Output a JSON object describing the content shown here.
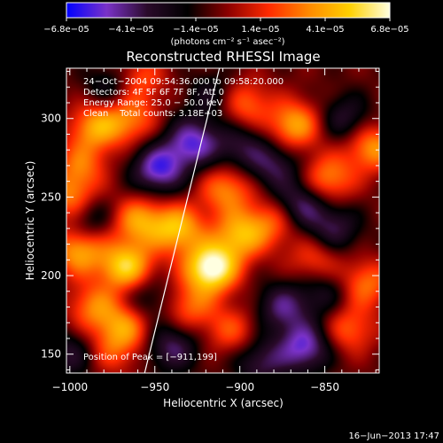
{
  "chart_data": {
    "type": "heatmap",
    "title": "Reconstructed RHESSI Image",
    "xlabel": "Heliocentric X (arcsec)",
    "ylabel": "Heliocentric Y (arcsec)",
    "xlim": [
      -1002,
      -818
    ],
    "ylim": [
      138,
      332
    ],
    "x_ticks": [
      -1000,
      -950,
      -900,
      -850
    ],
    "x_tick_labels": [
      "−1000",
      "−950",
      "−900",
      "−850"
    ],
    "y_ticks": [
      150,
      200,
      250,
      300
    ],
    "y_tick_labels": [
      "150",
      "200",
      "250",
      "300"
    ],
    "colorbar": {
      "ticks": [
        "−6.8e−05",
        "−4.1e−05",
        "−1.4e−05",
        "1.4e−05",
        "4.1e−05",
        "6.8e−05"
      ],
      "range": [
        -6.8e-05,
        6.8e-05
      ],
      "units": "(photons cm⁻² s⁻¹ asec⁻²)",
      "colormap": [
        "#0000ff",
        "#7a32c8",
        "#2a0a2a",
        "#000000",
        "#8c0000",
        "#ff2a00",
        "#ff8a00",
        "#ffd000",
        "#ffffe0"
      ]
    },
    "annotations": {
      "lines": [
        "24−Oct−2004 09:54:36.000 to 09:58:20.000",
        "Detectors: 4F 5F 6F 7F 8F, Att 0",
        "Energy Range: 25.0 − 50.0 keV",
        "Clean    Total counts: 3.18E+03"
      ],
      "peak_label": "Position of Peak = [−911,199]"
    },
    "peak": [
      -911,
      199
    ],
    "limb_line": [
      [
        -956,
        138
      ],
      [
        -912,
        332
      ]
    ],
    "blobs": [
      {
        "x": -917,
        "y": 205,
        "v": 1.0
      },
      {
        "x": -900,
        "y": 226,
        "v": 0.6
      },
      {
        "x": -937,
        "y": 230,
        "v": 0.65
      },
      {
        "x": -967,
        "y": 206,
        "v": 0.75
      },
      {
        "x": -995,
        "y": 216,
        "v": 0.6
      },
      {
        "x": -960,
        "y": 235,
        "v": 0.55
      },
      {
        "x": -986,
        "y": 180,
        "v": 0.45
      },
      {
        "x": -967,
        "y": 168,
        "v": 0.5
      },
      {
        "x": -976,
        "y": 152,
        "v": 0.3
      },
      {
        "x": -999,
        "y": 248,
        "v": 0.55
      },
      {
        "x": -994,
        "y": 270,
        "v": 0.4
      },
      {
        "x": -985,
        "y": 295,
        "v": 0.55
      },
      {
        "x": -965,
        "y": 300,
        "v": 0.45
      },
      {
        "x": -898,
        "y": 310,
        "v": 0.45
      },
      {
        "x": -868,
        "y": 296,
        "v": 0.6
      },
      {
        "x": -848,
        "y": 262,
        "v": 0.5
      },
      {
        "x": -822,
        "y": 282,
        "v": 0.55
      },
      {
        "x": -908,
        "y": 255,
        "v": 0.5
      },
      {
        "x": -880,
        "y": 235,
        "v": 0.4
      },
      {
        "x": -856,
        "y": 210,
        "v": 0.35
      },
      {
        "x": -826,
        "y": 195,
        "v": 0.45
      },
      {
        "x": -836,
        "y": 166,
        "v": 0.4
      },
      {
        "x": -905,
        "y": 165,
        "v": 0.35
      },
      {
        "x": -930,
        "y": 180,
        "v": 0.4
      },
      {
        "x": -960,
        "y": 325,
        "v": 0.4
      },
      {
        "x": -928,
        "y": 285,
        "v": -0.6
      },
      {
        "x": -948,
        "y": 268,
        "v": -0.65
      },
      {
        "x": -865,
        "y": 245,
        "v": -0.5
      },
      {
        "x": -845,
        "y": 230,
        "v": -0.4
      },
      {
        "x": -880,
        "y": 270,
        "v": -0.4
      },
      {
        "x": -838,
        "y": 300,
        "v": -0.35
      },
      {
        "x": -900,
        "y": 282,
        "v": -0.35
      },
      {
        "x": -990,
        "y": 238,
        "v": -0.4
      },
      {
        "x": -862,
        "y": 155,
        "v": -0.6
      },
      {
        "x": -875,
        "y": 180,
        "v": -0.45
      },
      {
        "x": -888,
        "y": 145,
        "v": -0.4
      },
      {
        "x": -940,
        "y": 155,
        "v": -0.45
      },
      {
        "x": -975,
        "y": 320,
        "v": -0.35
      },
      {
        "x": -915,
        "y": 315,
        "v": -0.3
      },
      {
        "x": -850,
        "y": 190,
        "v": -0.3
      },
      {
        "x": -1000,
        "y": 150,
        "v": -0.35
      },
      {
        "x": -955,
        "y": 185,
        "v": -0.3
      }
    ]
  },
  "footer": {
    "timestamp": "16−Jun−2013 17:47"
  }
}
